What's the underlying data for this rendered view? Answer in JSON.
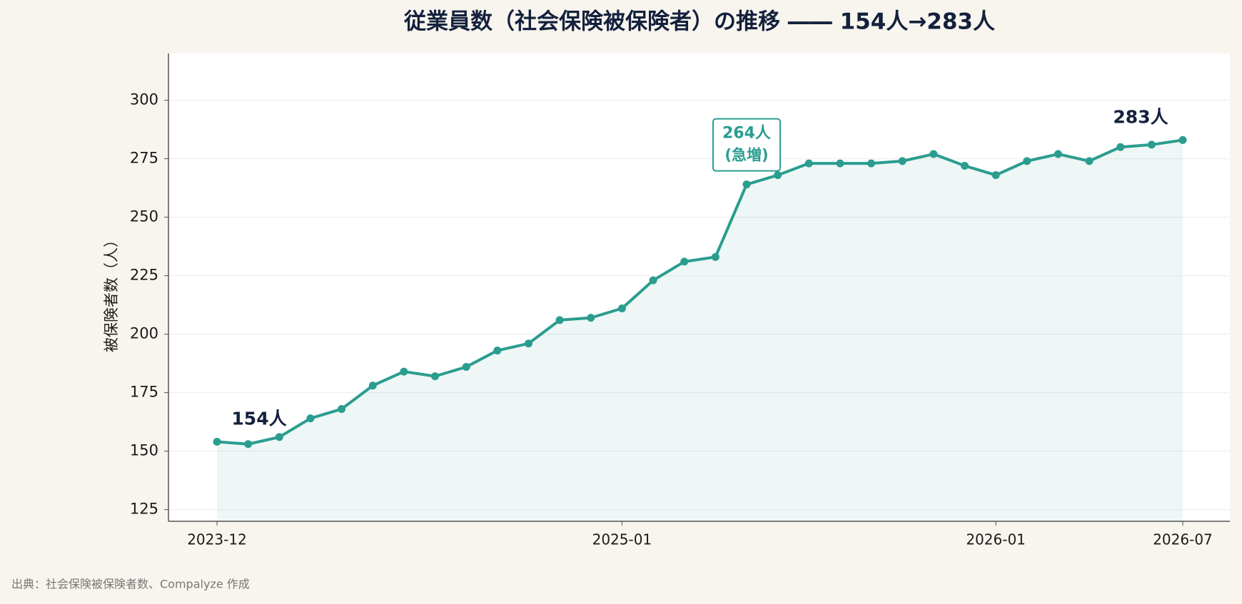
{
  "chart_data": {
    "type": "line",
    "title": "従業員数（社会保険被保険者）の推移 ―― 154人→283人",
    "y_label": "被保険者数（人）",
    "source": "出典：社会保険被保険者数、Compalyze 作成",
    "x": [
      "2023-12",
      "2024-01",
      "2024-02",
      "2024-03",
      "2024-04",
      "2024-05",
      "2024-06",
      "2024-07",
      "2024-08",
      "2024-09",
      "2024-10",
      "2024-11",
      "2024-12",
      "2025-01",
      "2025-02",
      "2025-03",
      "2025-04",
      "2025-05",
      "2025-06",
      "2025-07",
      "2025-08",
      "2025-09",
      "2025-10",
      "2025-11",
      "2025-12",
      "2026-01",
      "2026-02",
      "2026-03",
      "2026-04",
      "2026-05",
      "2026-06",
      "2026-07"
    ],
    "series": [
      {
        "name": "被保険者数",
        "color": "#2a9d8f",
        "values": [
          154,
          153,
          156,
          164,
          168,
          178,
          184,
          182,
          186,
          193,
          196,
          206,
          207,
          211,
          223,
          231,
          233,
          264,
          268,
          273,
          273,
          273,
          274,
          277,
          272,
          268,
          274,
          277,
          274,
          280,
          281,
          283
        ]
      }
    ],
    "xticks": [
      "2023-12",
      "2025-01",
      "2026-01",
      "2026-07"
    ],
    "ylim": [
      120,
      320
    ],
    "yticks": [
      125,
      150,
      175,
      200,
      225,
      250,
      275,
      300
    ],
    "grid": true,
    "area": true,
    "annotations": [
      {
        "text": "154人"
      },
      {
        "text": "264人",
        "note": "(急増)"
      },
      {
        "text": "283人"
      }
    ]
  }
}
